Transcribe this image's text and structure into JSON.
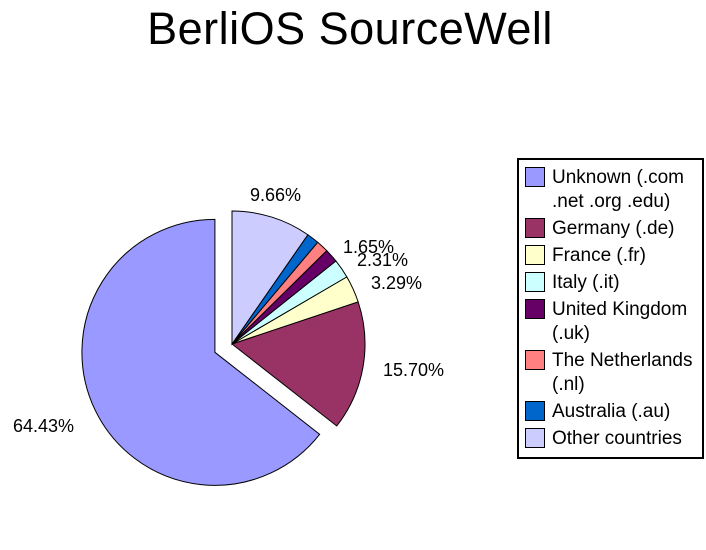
{
  "chart_data": {
    "type": "pie",
    "title": "BerliOS SourceWell",
    "legend_position": "right",
    "direction": "counterclockwise",
    "start_angle_deg": 0,
    "background": "#FFFFFF",
    "series": [
      {
        "key": "unknown",
        "name": "Unknown (.com .net .org .edu)",
        "value": 64.43,
        "label": "64.43%",
        "color": "#9999FF",
        "exploded": true
      },
      {
        "key": "germany",
        "name": "Germany (.de)",
        "value": 15.7,
        "label": "15.70%",
        "color": "#993366",
        "exploded": false
      },
      {
        "key": "france",
        "name": "France (.fr)",
        "value": 3.29,
        "label": "3.29%",
        "color": "#FFFFCC",
        "exploded": false
      },
      {
        "key": "italy",
        "name": "Italy (.it)",
        "value": 2.31,
        "label": "2.31%",
        "color": "#CCFFFF",
        "exploded": false
      },
      {
        "key": "united-kingdom",
        "name": "United Kingdom (.uk)",
        "value": 1.65,
        "label": "1.65%",
        "color": "#660066",
        "exploded": false
      },
      {
        "key": "netherlands",
        "name": "The Netherlands (.nl)",
        "value": 1.48,
        "label": "",
        "color": "#FF8080",
        "exploded": false
      },
      {
        "key": "australia",
        "name": "Australia (.au)",
        "value": 1.48,
        "label": "",
        "color": "#0066CC",
        "exploded": false
      },
      {
        "key": "other",
        "name": "Other countries",
        "value": 9.66,
        "label": "9.66%",
        "color": "#CCCCFF",
        "exploded": false
      }
    ]
  }
}
